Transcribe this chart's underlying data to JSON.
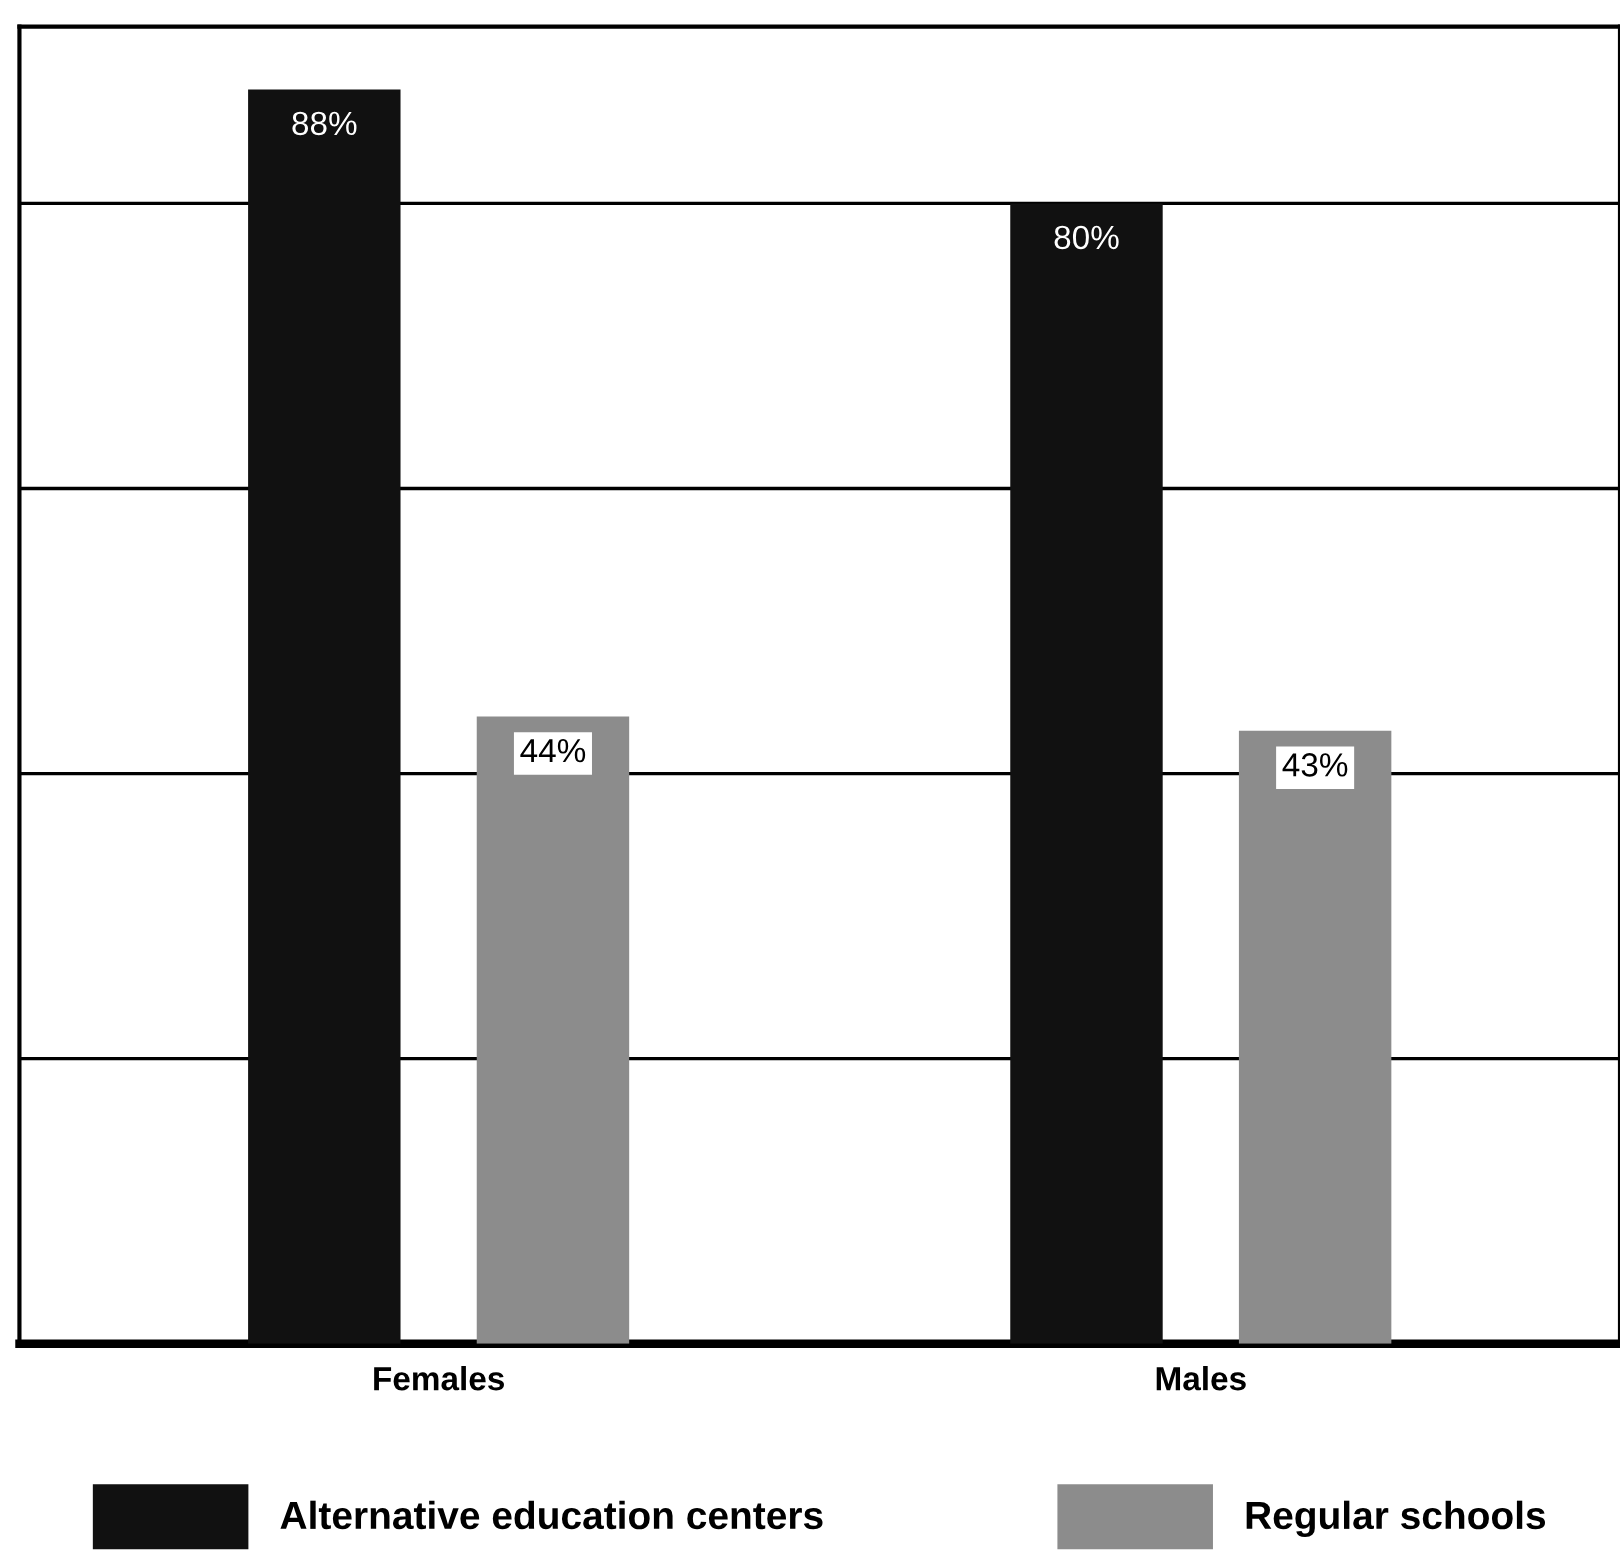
{
  "chart_data": {
    "type": "bar",
    "categories": [
      "Females",
      "Males"
    ],
    "series": [
      {
        "name": "Alternative education centers",
        "color": "#111111",
        "values": [
          88,
          80
        ],
        "value_labels": [
          "88%",
          "80%"
        ]
      },
      {
        "name": "Regular schools",
        "color": "#8c8c8c",
        "values": [
          44,
          43
        ],
        "value_labels": [
          "44%",
          "43%"
        ]
      }
    ],
    "grid": "y",
    "legend": "bottom"
  }
}
